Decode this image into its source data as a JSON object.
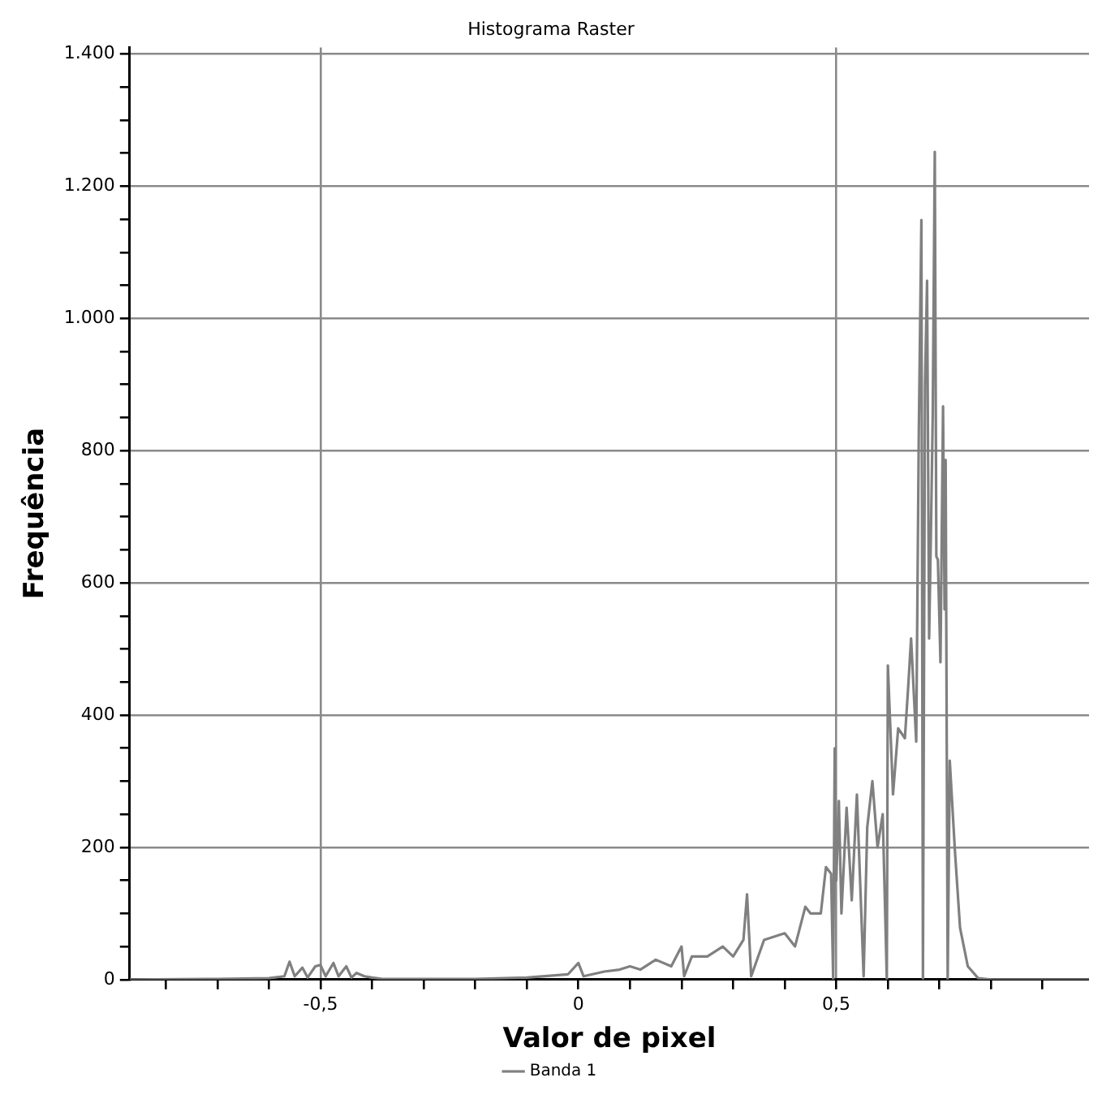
{
  "chart_data": {
    "type": "line",
    "title": "Histograma Raster",
    "xlabel": "Valor de pixel",
    "ylabel": "Frequência",
    "x": [
      -0.87,
      -0.7,
      -0.6,
      -0.57,
      -0.56,
      -0.55,
      -0.535,
      -0.525,
      -0.51,
      -0.5,
      -0.49,
      -0.475,
      -0.465,
      -0.45,
      -0.44,
      -0.43,
      -0.415,
      -0.4,
      -0.38,
      -0.3,
      -0.2,
      -0.1,
      -0.02,
      0,
      0.01,
      0.05,
      0.08,
      0.1,
      0.12,
      0.15,
      0.18,
      0.2,
      0.205,
      0.22,
      0.25,
      0.28,
      0.3,
      0.32,
      0.327,
      0.335,
      0.36,
      0.4,
      0.42,
      0.44,
      0.45,
      0.47,
      0.48,
      0.49,
      0.494,
      0.497,
      0.5,
      0.505,
      0.51,
      0.52,
      0.53,
      0.54,
      0.553,
      0.56,
      0.57,
      0.58,
      0.59,
      0.598,
      0.6,
      0.61,
      0.62,
      0.633,
      0.64,
      0.645,
      0.655,
      0.66,
      0.665,
      0.668,
      0.672,
      0.676,
      0.68,
      0.684,
      0.687,
      0.691,
      0.694,
      0.697,
      0.702,
      0.707,
      0.71,
      0.712,
      0.716,
      0.72,
      0.73,
      0.74,
      0.755,
      0.775,
      0.8,
      0.99
    ],
    "series": [
      {
        "name": "Banda 1",
        "color": "#808080",
        "values": [
          0,
          1,
          2,
          5,
          27,
          5,
          18,
          3,
          20,
          22,
          5,
          25,
          5,
          20,
          3,
          10,
          5,
          3,
          1,
          1,
          1,
          3,
          8,
          25,
          5,
          12,
          15,
          20,
          15,
          30,
          20,
          50,
          5,
          35,
          35,
          50,
          35,
          60,
          129,
          5,
          60,
          70,
          50,
          110,
          100,
          100,
          170,
          160,
          0,
          350,
          150,
          270,
          100,
          260,
          120,
          280,
          5,
          230,
          300,
          200,
          250,
          0,
          475,
          280,
          380,
          365,
          450,
          516,
          360,
          828,
          1149,
          0,
          900,
          1057,
          516,
          700,
          855,
          1252,
          640,
          635,
          480,
          867,
          560,
          786,
          0,
          331,
          195,
          78,
          20,
          2,
          0,
          0
        ]
      }
    ],
    "xlim": [
      -0.87,
      0.99
    ],
    "ylim": [
      0,
      1410
    ],
    "xticks": [
      {
        "value": -0.8,
        "label": null
      },
      {
        "value": -0.7,
        "label": null
      },
      {
        "value": -0.6,
        "label": null
      },
      {
        "value": -0.5,
        "label": "-0,5"
      },
      {
        "value": -0.4,
        "label": null
      },
      {
        "value": -0.3,
        "label": null
      },
      {
        "value": -0.2,
        "label": null
      },
      {
        "value": -0.1,
        "label": null
      },
      0,
      {
        "value": 0.1,
        "label": null
      },
      {
        "value": 0.2,
        "label": null
      },
      {
        "value": 0.3,
        "label": null
      },
      {
        "value": 0.4,
        "label": null
      },
      {
        "value": 0.5,
        "label": "0,5"
      },
      {
        "value": 0.6,
        "label": null
      },
      {
        "value": 0.7,
        "label": null
      },
      {
        "value": 0.8,
        "label": null
      },
      {
        "value": 0.9,
        "label": null
      }
    ],
    "yticks": [
      0,
      {
        "value": 50,
        "label": null
      },
      {
        "value": 100,
        "label": null
      },
      {
        "value": 150,
        "label": null
      },
      200,
      {
        "value": 250,
        "label": null
      },
      {
        "value": 300,
        "label": null
      },
      {
        "value": 350,
        "label": null
      },
      400,
      {
        "value": 450,
        "label": null
      },
      {
        "value": 500,
        "label": null
      },
      {
        "value": 550,
        "label": null
      },
      600,
      {
        "value": 650,
        "label": null
      },
      {
        "value": 700,
        "label": null
      },
      {
        "value": 750,
        "label": null
      },
      800,
      {
        "value": 850,
        "label": null
      },
      {
        "value": 900,
        "label": null
      },
      {
        "value": 950,
        "label": null
      },
      {
        "value": 1000,
        "label": "1.000"
      },
      {
        "value": 1050,
        "label": null
      },
      {
        "value": 1100,
        "label": null
      },
      {
        "value": 1150,
        "label": null
      },
      {
        "value": 1200,
        "label": "1.200"
      },
      {
        "value": 1250,
        "label": null
      },
      {
        "value": 1300,
        "label": null
      },
      {
        "value": 1350,
        "label": null
      },
      {
        "value": 1400,
        "label": "1.400"
      }
    ],
    "grid": true,
    "legend": "bottom",
    "marker": "none",
    "line_style": "solid"
  }
}
